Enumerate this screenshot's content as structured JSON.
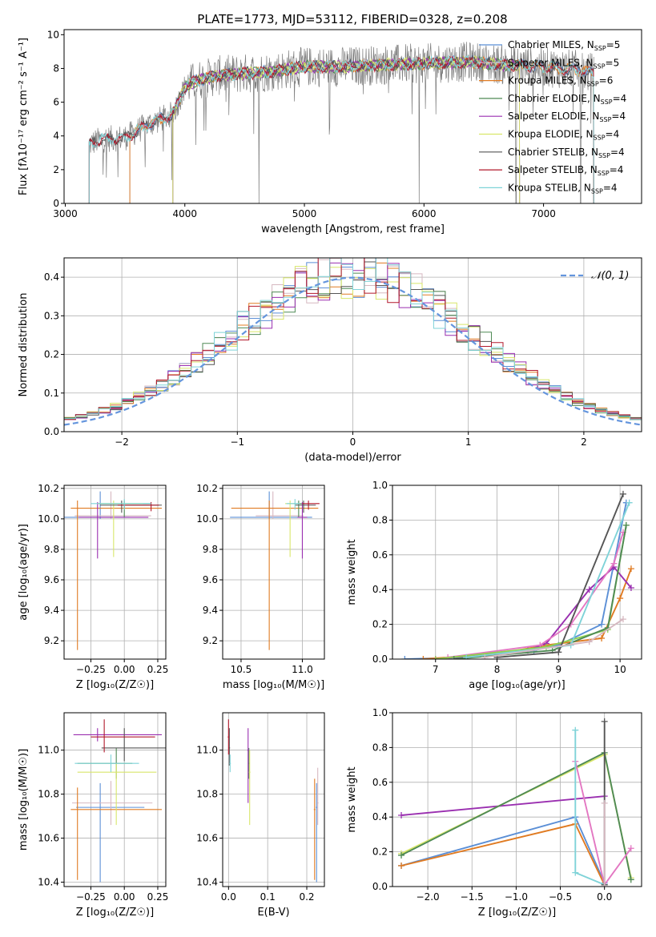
{
  "figure": {
    "title": "PLATE=1773, MJD=53112, FIBERID=0328, z=0.208",
    "colors": {
      "Chabrier MILES": "#5b8fd6",
      "Salpeter MILES": "#d6b8c0",
      "Kroupa MILES": "#e07b22",
      "Chabrier ELODIE": "#4f8a55",
      "Salpeter ELODIE": "#9a2fb0",
      "Kroupa ELODIE": "#d8e66a",
      "Chabrier STELIB": "#555555",
      "Salpeter STELIB": "#b2182b",
      "Kroupa STELIB": "#7fd3d8",
      "data": "#7f7f7f",
      "gaussian": "#6495dd",
      "mw_ek": "#e377c2",
      "mw_lg": "#8fd14f",
      "grid": "#b0b0b0"
    }
  },
  "chart_data": [
    {
      "id": "spectrum",
      "type": "line",
      "title": "PLATE=1773, MJD=53112, FIBERID=0328, z=0.208",
      "xlabel": "wavelength [Angstrom, rest frame]",
      "ylabel": "Flux [fλ10⁻¹⁷ erg cm⁻² s⁻¹ A⁻¹]",
      "xlim": [
        2990,
        7820
      ],
      "ylim": [
        0,
        10.3
      ],
      "xticks": [
        3000,
        4000,
        5000,
        6000,
        7000
      ],
      "yticks": [
        0,
        2,
        4,
        6,
        8,
        10
      ],
      "grid": false,
      "legend_position": "right",
      "legend": [
        "Chabrier MILES, N_SSP=5",
        "Salpeter MILES, N_SSP=5",
        "Kroupa MILES, N_SSP=6",
        "Chabrier ELODIE, N_SSP=4",
        "Salpeter ELODIE, N_SSP=4",
        "Kroupa ELODIE, N_SSP=4",
        "Chabrier STELIB, N_SSP=4",
        "Salpeter STELIB, N_SSP=4",
        "Kroupa STELIB, N_SSP=4"
      ],
      "continuum": {
        "x": [
          3200,
          3300,
          3500,
          3700,
          3900,
          4000,
          4100,
          4300,
          4500,
          4700,
          5000,
          5300,
          5600,
          6000,
          6400,
          6700,
          7000,
          7300,
          7420
        ],
        "y": [
          3.5,
          3.8,
          3.9,
          4.7,
          5.3,
          6.9,
          7.3,
          7.6,
          7.7,
          7.8,
          8.1,
          8.1,
          8.2,
          8.3,
          8.4,
          8.2,
          8.1,
          7.9,
          7.7
        ]
      },
      "model_cutoffs": {
        "Chabrier MILES": [
          3540,
          7420
        ],
        "Salpeter MILES": [
          3540,
          7420
        ],
        "Kroupa MILES": [
          3540,
          7420
        ],
        "Chabrier ELODIE": [
          3900,
          6800
        ],
        "Salpeter ELODIE": [
          3900,
          6800
        ],
        "Kroupa ELODIE": [
          3900,
          6800
        ],
        "Chabrier STELIB": [
          3200,
          7420
        ],
        "Salpeter STELIB": [
          3200,
          7420
        ],
        "Kroupa STELIB": [
          3200,
          7420
        ]
      },
      "data_dropouts": [
        3200,
        4620,
        5960,
        6770,
        7310
      ]
    },
    {
      "id": "residuals",
      "type": "histogram",
      "xlabel": "(data-model)/error",
      "ylabel": "Normed distribution",
      "xlim": [
        -2.5,
        2.5
      ],
      "ylim": [
        0,
        0.45
      ],
      "xticks": [
        -2,
        -1,
        0,
        1,
        2
      ],
      "yticks": [
        0.0,
        0.1,
        0.2,
        0.3,
        0.4
      ],
      "grid": true,
      "legend_position": "top-right",
      "legend": [
        "𝒩(0, 1)"
      ],
      "bin_width": 0.1
    },
    {
      "id": "age_vs_Z",
      "type": "errorbar",
      "xlabel": "Z [log₁₀(Z/Z☉)]",
      "ylabel": "age  [log₁₀(age/yr)]",
      "xlim": [
        -0.45,
        0.31
      ],
      "ylim": [
        9.08,
        10.22
      ],
      "xticks": [
        -0.25,
        0.0,
        0.25
      ],
      "xticklabels": [
        "−0.25",
        "0.00",
        "0.25"
      ],
      "yticks": [
        9.2,
        9.4,
        9.6,
        9.8,
        10.0,
        10.2
      ],
      "grid": true,
      "points": [
        {
          "model": "Chabrier MILES",
          "x": -0.18,
          "y": 10.01,
          "xerr": [
            0.42,
            0.22
          ],
          "yerr": [
            0.01,
            0.17
          ]
        },
        {
          "model": "Salpeter MILES",
          "x": -0.1,
          "y": 10.02,
          "xerr": [
            0.27,
            0.3
          ],
          "yerr": [
            0.02,
            0.16
          ]
        },
        {
          "model": "Kroupa MILES",
          "x": -0.35,
          "y": 10.07,
          "xerr": [
            0.05,
            0.63
          ],
          "yerr": [
            0.93,
            0.05
          ]
        },
        {
          "model": "Chabrier ELODIE",
          "x": 0.0,
          "y": 10.1,
          "xerr": [
            0.2,
            0.2
          ],
          "yerr": [
            0.09,
            0.02
          ]
        },
        {
          "model": "Salpeter ELODIE",
          "x": -0.2,
          "y": 10.01,
          "xerr": [
            0.14,
            0.38
          ],
          "yerr": [
            0.27,
            0.1
          ]
        },
        {
          "model": "Kroupa ELODIE",
          "x": -0.08,
          "y": 10.1,
          "xerr": [
            0.12,
            0.22
          ],
          "yerr": [
            0.35,
            0.02
          ]
        },
        {
          "model": "Chabrier STELIB",
          "x": -0.02,
          "y": 10.09,
          "xerr": [
            0.16,
            0.3
          ],
          "yerr": [
            0.05,
            0.03
          ]
        },
        {
          "model": "Salpeter STELIB",
          "x": 0.2,
          "y": 10.09,
          "xerr": [
            0.25,
            0.06
          ],
          "yerr": [
            0.04,
            0.02
          ]
        },
        {
          "model": "Kroupa STELIB",
          "x": 0.0,
          "y": 10.1,
          "xerr": [
            0.25,
            0.2
          ],
          "yerr": [
            0.04,
            0.03
          ]
        }
      ]
    },
    {
      "id": "age_vs_mass",
      "type": "errorbar",
      "xlabel": "mass [log₁₀(M/M☉)]",
      "ylabel": "",
      "xlim": [
        10.35,
        11.18
      ],
      "ylim": [
        9.08,
        10.22
      ],
      "xticks": [
        10.5,
        11.0
      ],
      "yticks": [
        9.2,
        9.4,
        9.6,
        9.8,
        10.0,
        10.2
      ],
      "grid": true,
      "points": [
        {
          "model": "Chabrier MILES",
          "x": 10.73,
          "y": 10.01,
          "xerr": [
            0.32,
            0.35
          ],
          "yerr": [
            0.01,
            0.17
          ]
        },
        {
          "model": "Salpeter MILES",
          "x": 10.76,
          "y": 10.02,
          "xerr": [
            0.14,
            0.25
          ],
          "yerr": [
            0.02,
            0.16
          ]
        },
        {
          "model": "Kroupa MILES",
          "x": 10.73,
          "y": 10.07,
          "xerr": [
            0.31,
            0.4
          ],
          "yerr": [
            0.93,
            0.05
          ]
        },
        {
          "model": "Chabrier ELODIE",
          "x": 10.97,
          "y": 10.1,
          "xerr": [
            0.04,
            0.04
          ],
          "yerr": [
            0.09,
            0.02
          ]
        },
        {
          "model": "Salpeter ELODIE",
          "x": 11.0,
          "y": 10.01,
          "xerr": [
            0.04,
            0.04
          ],
          "yerr": [
            0.27,
            0.1
          ]
        },
        {
          "model": "Kroupa ELODIE",
          "x": 10.9,
          "y": 10.1,
          "xerr": [
            0.04,
            0.04
          ],
          "yerr": [
            0.35,
            0.02
          ]
        },
        {
          "model": "Chabrier STELIB",
          "x": 11.01,
          "y": 10.09,
          "xerr": [
            0.07,
            0.1
          ],
          "yerr": [
            0.05,
            0.03
          ]
        },
        {
          "model": "Salpeter STELIB",
          "x": 11.05,
          "y": 10.1,
          "xerr": [
            0.05,
            0.09
          ],
          "yerr": [
            0.04,
            0.02
          ]
        },
        {
          "model": "Kroupa STELIB",
          "x": 10.94,
          "y": 10.1,
          "xerr": [
            0.07,
            0.04
          ],
          "yerr": [
            0.04,
            0.03
          ]
        }
      ]
    },
    {
      "id": "mw_vs_age",
      "type": "line",
      "xlabel": "age  [log₁₀(age/yr)]",
      "ylabel": "mass weight",
      "xlim": [
        6.3,
        10.35
      ],
      "ylim": [
        0,
        1.0
      ],
      "xticks": [
        7,
        8,
        9,
        10
      ],
      "yticks": [
        0.0,
        0.2,
        0.4,
        0.6,
        0.8,
        1.0
      ],
      "grid": true,
      "series": [
        {
          "color_key": "Chabrier MILES",
          "x": [
            6.5,
            7.5,
            8.6,
            9.0,
            9.7,
            10.1
          ],
          "y": [
            0.0,
            0.01,
            0.05,
            0.08,
            0.2,
            0.9
          ]
        },
        {
          "color_key": "Kroupa MILES",
          "x": [
            6.8,
            8.0,
            8.8,
            9.7,
            10.0,
            10.18
          ],
          "y": [
            0.0,
            0.03,
            0.08,
            0.12,
            0.35,
            0.52
          ]
        },
        {
          "color_key": "Salpeter ELODIE",
          "x": [
            7.0,
            8.5,
            8.8,
            9.5,
            9.9,
            10.18
          ],
          "y": [
            0.0,
            0.05,
            0.09,
            0.4,
            0.53,
            0.41
          ]
        },
        {
          "color_key": "mw_ek",
          "x": [
            7.2,
            8.7,
            9.2,
            9.9,
            10.05
          ],
          "y": [
            0.01,
            0.08,
            0.2,
            0.55,
            0.73
          ]
        },
        {
          "color_key": "mw_lg",
          "x": [
            7.0,
            8.8,
            9.8,
            10.1
          ],
          "y": [
            0.0,
            0.07,
            0.17,
            0.77
          ]
        },
        {
          "color_key": "Chabrier ELODIE",
          "x": [
            7.3,
            8.9,
            9.8,
            10.1
          ],
          "y": [
            0.0,
            0.05,
            0.18,
            0.77
          ]
        },
        {
          "color_key": "Chabrier STELIB",
          "x": [
            8.0,
            9.0,
            10.05
          ],
          "y": [
            0.01,
            0.04,
            0.95
          ]
        },
        {
          "color_key": "Kroupa STELIB",
          "x": [
            7.5,
            9.2,
            10.15
          ],
          "y": [
            0.01,
            0.08,
            0.9
          ]
        },
        {
          "color_key": "Salpeter MILES",
          "x": [
            7.8,
            9.5,
            10.05
          ],
          "y": [
            0.01,
            0.1,
            0.23
          ]
        }
      ]
    },
    {
      "id": "mass_vs_Z",
      "type": "errorbar",
      "xlabel": "Z [log₁₀(Z/Z☉)]",
      "ylabel": "mass [log₁₀(M/M☉)]",
      "xlim": [
        -0.45,
        0.31
      ],
      "ylim": [
        10.38,
        11.17
      ],
      "xticks": [
        -0.25,
        0.0,
        0.25
      ],
      "xticklabels": [
        "−0.25",
        "0.00",
        "0.25"
      ],
      "yticks": [
        10.4,
        10.6,
        10.8,
        11.0
      ],
      "grid": true,
      "points": [
        {
          "model": "Chabrier MILES",
          "x": -0.18,
          "y": 10.74,
          "xerr": [
            0.18,
            0.33
          ],
          "yerr": [
            0.34,
            0.11
          ]
        },
        {
          "model": "Salpeter MILES",
          "x": -0.1,
          "y": 10.76,
          "xerr": [
            0.29,
            0.31
          ],
          "yerr": [
            0.1,
            0.1
          ]
        },
        {
          "model": "Kroupa MILES",
          "x": -0.35,
          "y": 10.73,
          "xerr": [
            0.05,
            0.63
          ],
          "yerr": [
            0.32,
            0.1
          ]
        },
        {
          "model": "Chabrier ELODIE",
          "x": -0.06,
          "y": 10.94,
          "xerr": [
            0.29,
            0.12
          ],
          "yerr": [
            0.07,
            0.07
          ]
        },
        {
          "model": "Salpeter ELODIE",
          "x": -0.2,
          "y": 11.07,
          "xerr": [
            0.18,
            0.48
          ],
          "yerr": [
            0.03,
            0.03
          ]
        },
        {
          "model": "Kroupa ELODIE",
          "x": -0.06,
          "y": 10.9,
          "xerr": [
            0.29,
            0.3
          ],
          "yerr": [
            0.24,
            0.04
          ]
        },
        {
          "model": "Chabrier STELIB",
          "x": 0.0,
          "y": 11.01,
          "xerr": [
            0.17,
            0.37
          ],
          "yerr": [
            0.06,
            0.09
          ]
        },
        {
          "model": "Salpeter STELIB",
          "x": -0.15,
          "y": 11.06,
          "xerr": [
            0.1,
            0.38
          ],
          "yerr": [
            0.07,
            0.08
          ]
        },
        {
          "model": "Kroupa STELIB",
          "x": -0.1,
          "y": 10.94,
          "xerr": [
            0.27,
            0.21
          ],
          "yerr": [
            0.04,
            0.04
          ]
        }
      ]
    },
    {
      "id": "mass_vs_ebv",
      "type": "errorbar",
      "xlabel": "E(B-V)",
      "ylabel": "",
      "xlim": [
        -0.015,
        0.245
      ],
      "ylim": [
        10.38,
        11.17
      ],
      "xticks": [
        0.0,
        0.1,
        0.2
      ],
      "yticks": [
        10.4,
        10.6,
        10.8,
        11.0
      ],
      "grid": true,
      "points": [
        {
          "model": "Chabrier MILES",
          "x": 0.225,
          "y": 10.74,
          "xerr": [
            0.002,
            0.002
          ],
          "yerr": [
            0.34,
            0.11
          ]
        },
        {
          "model": "Salpeter MILES",
          "x": 0.228,
          "y": 10.76,
          "xerr": [
            0.002,
            0.002
          ],
          "yerr": [
            0.1,
            0.16
          ]
        },
        {
          "model": "Kroupa MILES",
          "x": 0.22,
          "y": 10.73,
          "xerr": [
            0.002,
            0.002
          ],
          "yerr": [
            0.32,
            0.14
          ]
        },
        {
          "model": "Chabrier ELODIE",
          "x": 0.052,
          "y": 10.94,
          "xerr": [
            0.002,
            0.002
          ],
          "yerr": [
            0.07,
            0.07
          ]
        },
        {
          "model": "Salpeter ELODIE",
          "x": 0.05,
          "y": 11.0,
          "xerr": [
            0.002,
            0.002
          ],
          "yerr": [
            0.24,
            0.1
          ]
        },
        {
          "model": "Kroupa ELODIE",
          "x": 0.054,
          "y": 10.9,
          "xerr": [
            0.002,
            0.002
          ],
          "yerr": [
            0.24,
            0.1
          ]
        },
        {
          "model": "Chabrier STELIB",
          "x": 0.002,
          "y": 11.01,
          "xerr": [
            0.002,
            0.002
          ],
          "yerr": [
            0.08,
            0.09
          ]
        },
        {
          "model": "Salpeter STELIB",
          "x": 0.0,
          "y": 11.06,
          "xerr": [
            0.002,
            0.002
          ],
          "yerr": [
            0.08,
            0.08
          ]
        },
        {
          "model": "Kroupa STELIB",
          "x": 0.004,
          "y": 10.94,
          "xerr": [
            0.002,
            0.002
          ],
          "yerr": [
            0.04,
            0.04
          ]
        }
      ]
    },
    {
      "id": "mw_vs_Z",
      "type": "line",
      "xlabel": "Z [log₁₀(Z/Z☉)]",
      "ylabel": "mass weight",
      "xlim": [
        -2.4,
        0.42
      ],
      "ylim": [
        0,
        1.0
      ],
      "xticks": [
        -2.0,
        -1.5,
        -1.0,
        -0.5,
        0.0
      ],
      "xticklabels": [
        "−2.0",
        "−1.5",
        "−1.0",
        "−0.5",
        "0.0"
      ],
      "yticks": [
        0.0,
        0.2,
        0.4,
        0.6,
        0.8,
        1.0
      ],
      "grid": true,
      "series": [
        {
          "color_key": "Salpeter ELODIE",
          "x": [
            -2.3,
            0.0
          ],
          "y": [
            0.41,
            0.52
          ]
        },
        {
          "color_key": "Kroupa ELODIE",
          "x": [
            -2.3,
            0.0,
            0.3
          ],
          "y": [
            0.19,
            0.76,
            0.05
          ]
        },
        {
          "color_key": "Chabrier ELODIE",
          "x": [
            -2.3,
            0.0,
            0.3
          ],
          "y": [
            0.18,
            0.77,
            0.04
          ]
        },
        {
          "color_key": "Chabrier MILES",
          "x": [
            -2.3,
            -0.33,
            0.0
          ],
          "y": [
            0.12,
            0.4,
            0.02
          ]
        },
        {
          "color_key": "Kroupa MILES",
          "x": [
            -2.3,
            -0.33,
            0.0
          ],
          "y": [
            0.12,
            0.36,
            0.01
          ]
        },
        {
          "color_key": "mw_ek",
          "x": [
            -0.33,
            0.0,
            0.3
          ],
          "y": [
            0.72,
            0.01,
            0.22
          ]
        },
        {
          "color_key": "Kroupa STELIB",
          "x": [
            -0.33,
            -0.33,
            0.0
          ],
          "y": [
            0.9,
            0.08,
            0.01
          ]
        },
        {
          "color_key": "Chabrier STELIB",
          "x": [
            0.0,
            0.0
          ],
          "y": [
            0.01,
            0.95
          ]
        },
        {
          "color_key": "Salpeter MILES",
          "x": [
            0.0,
            0.0
          ],
          "y": [
            0.0,
            0.48
          ]
        }
      ]
    }
  ]
}
